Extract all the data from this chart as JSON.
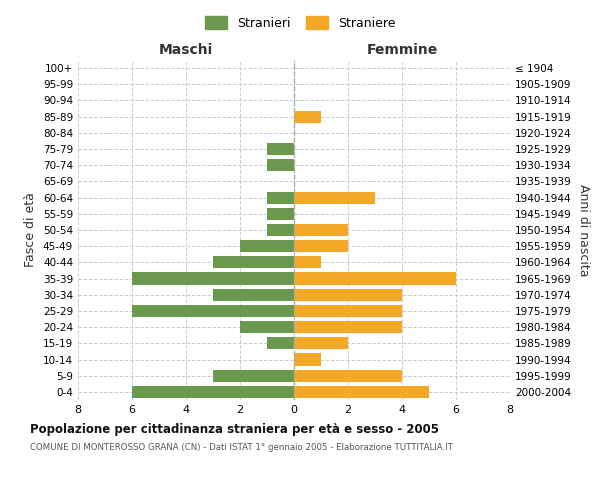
{
  "age_groups": [
    "0-4",
    "5-9",
    "10-14",
    "15-19",
    "20-24",
    "25-29",
    "30-34",
    "35-39",
    "40-44",
    "45-49",
    "50-54",
    "55-59",
    "60-64",
    "65-69",
    "70-74",
    "75-79",
    "80-84",
    "85-89",
    "90-94",
    "95-99",
    "100+"
  ],
  "birth_years": [
    "2000-2004",
    "1995-1999",
    "1990-1994",
    "1985-1989",
    "1980-1984",
    "1975-1979",
    "1970-1974",
    "1965-1969",
    "1960-1964",
    "1955-1959",
    "1950-1954",
    "1945-1949",
    "1940-1944",
    "1935-1939",
    "1930-1934",
    "1925-1929",
    "1920-1924",
    "1915-1919",
    "1910-1914",
    "1905-1909",
    "≤ 1904"
  ],
  "males": [
    6,
    3,
    0,
    1,
    2,
    6,
    3,
    6,
    3,
    2,
    1,
    1,
    1,
    0,
    1,
    1,
    0,
    0,
    0,
    0,
    0
  ],
  "females": [
    5,
    4,
    1,
    2,
    4,
    4,
    4,
    6,
    1,
    2,
    2,
    0,
    3,
    0,
    0,
    0,
    0,
    1,
    0,
    0,
    0
  ],
  "male_color": "#6a994e",
  "female_color": "#f4a827",
  "grid_color": "#cccccc",
  "center_line_color": "#aaaaaa",
  "background_color": "#ffffff",
  "title": "Popolazione per cittadinanza straniera per età e sesso - 2005",
  "subtitle": "COMUNE DI MONTEROSSO GRANA (CN) - Dati ISTAT 1° gennaio 2005 - Elaborazione TUTTITALIA.IT",
  "xlabel_left": "Maschi",
  "xlabel_right": "Femmine",
  "ylabel_left": "Fasce di età",
  "ylabel_right": "Anni di nascita",
  "legend_male": "Stranieri",
  "legend_female": "Straniere",
  "xlim": 8,
  "bar_height": 0.75
}
